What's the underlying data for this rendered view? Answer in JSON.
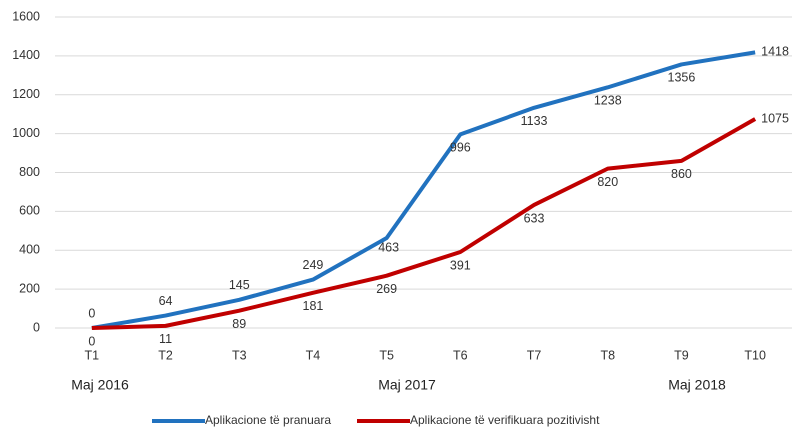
{
  "chart_data": {
    "type": "line",
    "categories": [
      "T1",
      "T2",
      "T3",
      "T4",
      "T5",
      "T6",
      "T7",
      "T8",
      "T9",
      "T10"
    ],
    "series": [
      {
        "name": "Aplikacione të pranuara",
        "color": "#2172bf",
        "values": [
          0,
          64,
          145,
          249,
          463,
          996,
          1133,
          1238,
          1356,
          1418
        ]
      },
      {
        "name": "Aplikacione të verifikuara pozitivisht",
        "color": "#c00000",
        "values": [
          0,
          11,
          89,
          181,
          269,
          391,
          633,
          820,
          860,
          1075
        ]
      }
    ],
    "ylim": [
      0,
      1600
    ],
    "yticks": [
      0,
      200,
      400,
      600,
      800,
      1000,
      1200,
      1400,
      1600
    ],
    "grid": true,
    "annotations": [
      "Maj 2016",
      "Maj 2017",
      "Maj 2018"
    ],
    "legend": "bottom"
  }
}
